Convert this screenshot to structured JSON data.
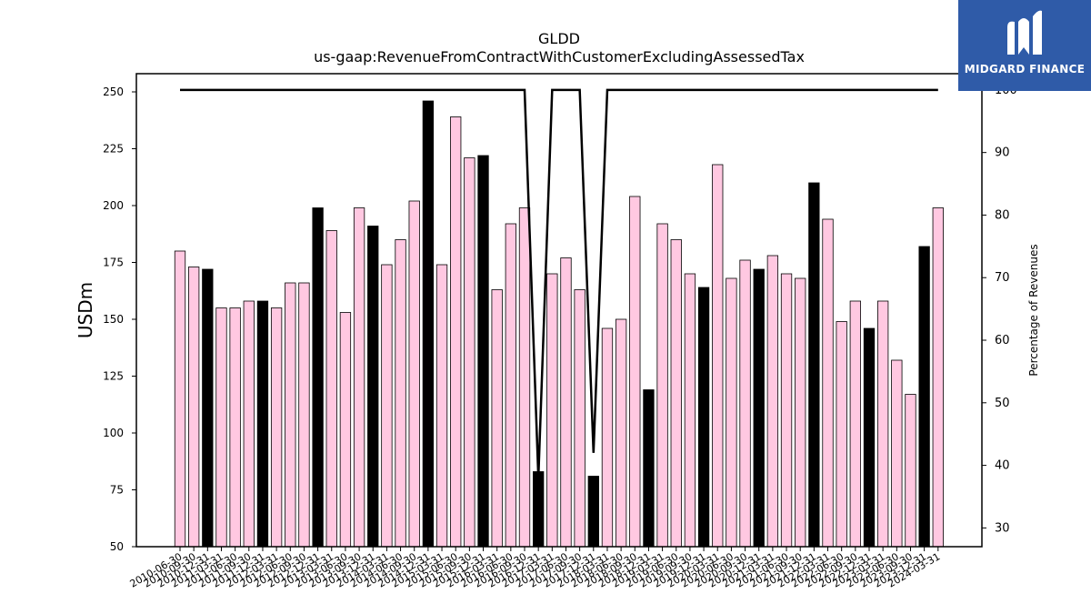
{
  "chart_data": {
    "type": "bar",
    "title": "GLDD",
    "subtitle": "us-gaap:RevenueFromContractWithCustomerExcludingAssessedTax",
    "ylabel": "USDm",
    "y2label": "Percentage of Revenues",
    "ylim": [
      50,
      258
    ],
    "y2lim": [
      27,
      102.6
    ],
    "yticks": [
      50,
      75,
      100,
      125,
      150,
      175,
      200,
      225,
      250
    ],
    "y2ticks": [
      30,
      40,
      50,
      60,
      70,
      80,
      90,
      100
    ],
    "bar_colors": {
      "quarter": "#ffc8e1",
      "annual": "#000000",
      "edge": "#000000"
    },
    "line_color": "#000000",
    "grid": false,
    "categories": [
      "2010-06-30",
      "2010-09-30",
      "2010-12-31",
      "2011-03-31",
      "2011-06-30",
      "2011-09-30",
      "2011-12-31",
      "2012-03-31",
      "2012-06-30",
      "2012-09-30",
      "2012-12-31",
      "2013-03-31",
      "2013-06-30",
      "2013-09-30",
      "2013-12-31",
      "2014-03-31",
      "2014-06-30",
      "2014-09-30",
      "2014-12-31",
      "2015-03-31",
      "2015-06-30",
      "2015-09-30",
      "2015-12-31",
      "2016-03-31",
      "2016-06-30",
      "2016-09-30",
      "2016-12-31",
      "2017-03-31",
      "2017-06-30",
      "2017-09-30",
      "2017-12-31",
      "2018-03-31",
      "2018-06-30",
      "2018-09-30",
      "2018-12-31",
      "2019-03-31",
      "2019-06-30",
      "2019-09-30",
      "2019-12-31",
      "2020-03-31",
      "2020-06-30",
      "2020-09-30",
      "2020-12-31",
      "2021-03-31",
      "2021-06-30",
      "2021-09-30",
      "2021-12-31",
      "2022-03-31",
      "2022-06-30",
      "2022-09-30",
      "2022-12-31",
      "2023-03-31",
      "2023-06-30",
      "2023-09-30",
      "2023-12-31",
      "2024-03-31"
    ],
    "series": [
      {
        "values": [
          180,
          173,
          172,
          155,
          155,
          158,
          158,
          155,
          166,
          166,
          199,
          189,
          153,
          199,
          191,
          174,
          185,
          202,
          246,
          174,
          239,
          221,
          222,
          163,
          192,
          199,
          83,
          170,
          177,
          163,
          81,
          146,
          150,
          204,
          119,
          192,
          185,
          170,
          164,
          218,
          168,
          176,
          172,
          178,
          170,
          168,
          210,
          194,
          149,
          158,
          146,
          158,
          132,
          117,
          182,
          199
        ],
        "annual": [
          false,
          false,
          true,
          false,
          false,
          false,
          true,
          false,
          false,
          false,
          true,
          false,
          false,
          false,
          true,
          false,
          false,
          false,
          true,
          false,
          false,
          false,
          true,
          false,
          false,
          false,
          true,
          false,
          false,
          false,
          true,
          false,
          false,
          false,
          true,
          false,
          false,
          false,
          true,
          false,
          false,
          false,
          true,
          false,
          false,
          false,
          true,
          false,
          false,
          false,
          true,
          false,
          false,
          false,
          true,
          false
        ]
      },
      {
        "axis": "right",
        "values": [
          100,
          100,
          100,
          100,
          100,
          100,
          100,
          100,
          100,
          100,
          100,
          100,
          100,
          100,
          100,
          100,
          100,
          100,
          100,
          100,
          100,
          100,
          100,
          100,
          100,
          100,
          38,
          100,
          100,
          100,
          42,
          100,
          100,
          100,
          100,
          100,
          100,
          100,
          100,
          100,
          100,
          100,
          100,
          100,
          100,
          100,
          100,
          100,
          100,
          100,
          100,
          100,
          100,
          100,
          100,
          100
        ]
      }
    ]
  },
  "logo": {
    "text": "MIDGARD FINANCE"
  }
}
